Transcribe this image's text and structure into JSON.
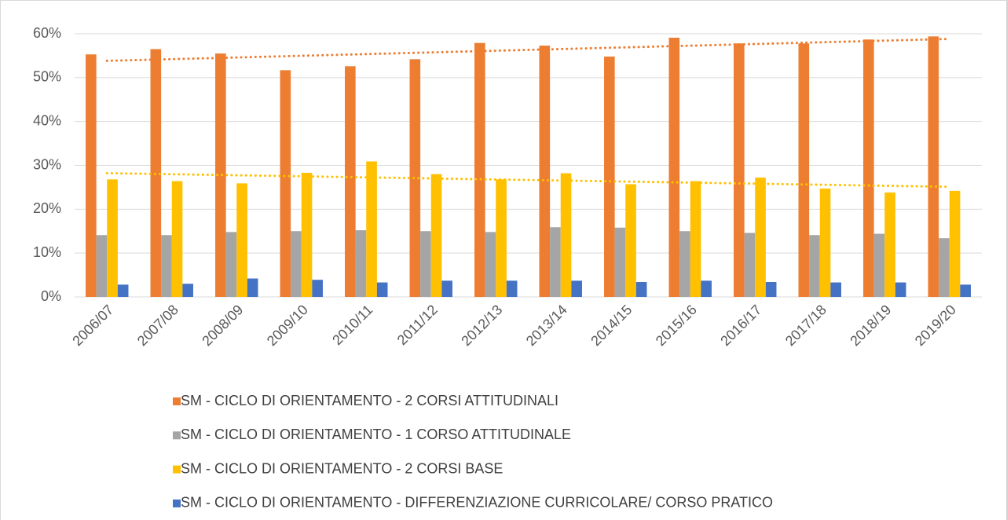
{
  "chart_data": {
    "type": "bar",
    "categories": [
      "2006/07",
      "2007/08",
      "2008/09",
      "2009/10",
      "2010/11",
      "2011/12",
      "2012/13",
      "2013/14",
      "2014/15",
      "2015/16",
      "2016/17",
      "2017/18",
      "2018/19",
      "2019/20"
    ],
    "series": [
      {
        "name": "SM - CICLO DI ORIENTAMENTO - 2 CORSI ATTITUDINALI",
        "color": "#ed7d31",
        "trendline": true,
        "values": [
          55.3,
          56.5,
          55.5,
          51.7,
          52.6,
          54.2,
          57.9,
          57.3,
          54.8,
          59.1,
          57.8,
          57.8,
          58.7,
          59.4
        ]
      },
      {
        "name": "SM - CICLO DI ORIENTAMENTO - 1 CORSO ATTITUDINALE",
        "color": "#a5a5a5",
        "trendline": false,
        "values": [
          14.1,
          14.1,
          14.8,
          15.0,
          15.2,
          15.0,
          14.8,
          15.9,
          15.8,
          15.0,
          14.6,
          14.1,
          14.4,
          13.4
        ]
      },
      {
        "name": "SM - CICLO DI ORIENTAMENTO - 2 CORSI BASE",
        "color": "#ffc000",
        "trendline": true,
        "values": [
          26.8,
          26.4,
          25.9,
          28.3,
          30.9,
          28.0,
          26.8,
          28.2,
          25.7,
          26.4,
          27.2,
          24.7,
          23.8,
          24.2
        ]
      },
      {
        "name": "SM - CICLO DI ORIENTAMENTO - DIFFERENZIAZIONE CURRICOLARE/ CORSO PRATICO",
        "color": "#4472c4",
        "trendline": false,
        "values": [
          2.8,
          3.0,
          4.2,
          3.9,
          3.3,
          3.7,
          3.7,
          3.7,
          3.4,
          3.7,
          3.4,
          3.3,
          3.3,
          2.8
        ]
      }
    ],
    "ylim": [
      0,
      60
    ],
    "yticks": [
      {
        "value": 0,
        "label": "0%"
      },
      {
        "value": 10,
        "label": "10%"
      },
      {
        "value": 20,
        "label": "20%"
      },
      {
        "value": 30,
        "label": "30%"
      },
      {
        "value": 40,
        "label": "40%"
      },
      {
        "value": 50,
        "label": "50%"
      },
      {
        "value": 60,
        "label": "60%"
      }
    ],
    "grid": true,
    "legend": "bottom"
  }
}
